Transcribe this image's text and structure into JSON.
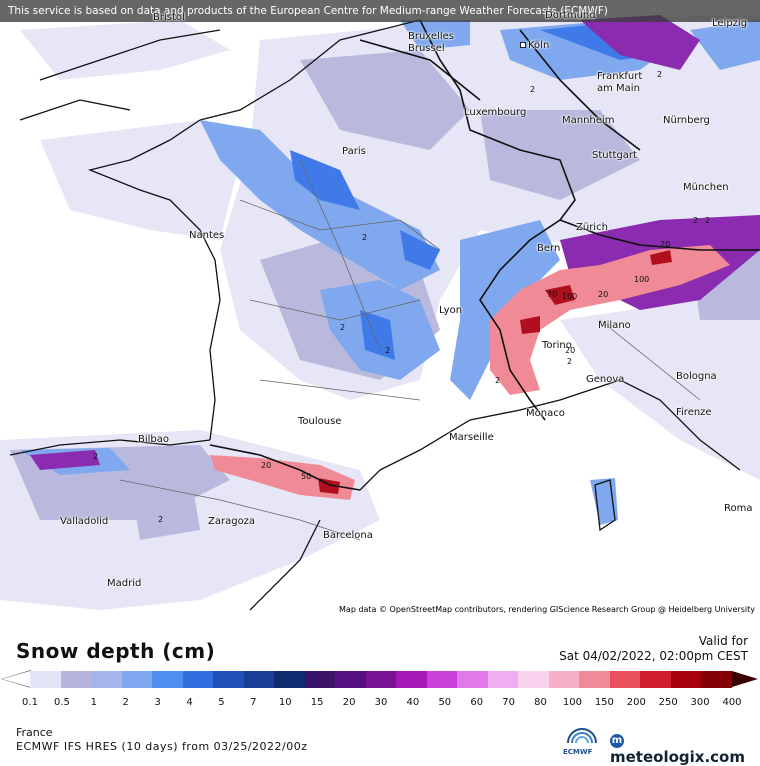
{
  "notice": "This service is based on data and products of the European Centre for Medium-range Weather Forecasts (ECMWF)",
  "attribution": "Map data © OpenStreetMap contributors, rendering GIScience Research Group @ Heidelberg University",
  "title": "Snow depth (cm)",
  "valid_label": "Valid for",
  "valid_time": "Sat 04/02/2022, 02:00pm CEST",
  "region": "France",
  "model": "ECMWF IFS HRES (10 days) from 03/25/2022/00z",
  "ecmwf_text": "ECMWF",
  "brand": "meteologix.com",
  "cities": {
    "bristol": "Bristol",
    "dortmund": "Dortmund",
    "leipzig": "Leipzig",
    "bruxelles": "Bruxelles\nBrussel",
    "koln": "Köln",
    "frankfurt": "Frankfurt\nam Main",
    "luxembourg": "Luxembourg",
    "mannheim": "Mannheim",
    "nurnberg": "Nürnberg",
    "paris": "Paris",
    "stuttgart": "Stuttgart",
    "munchen": "München",
    "nantes": "Nantes",
    "zurich": "Zürich",
    "bern": "Bern",
    "lyon": "Lyon",
    "milano": "Milano",
    "torino": "Torino",
    "genova": "Genova",
    "bologna": "Bologna",
    "firenze": "Firenze",
    "monaco": "Monaco",
    "toulouse": "Toulouse",
    "marseille": "Marseille",
    "bilbao": "Bilbao",
    "valladolid": "Valladolid",
    "zaragoza": "Zaragoza",
    "barcelona": "Barcelona",
    "roma": "Roma",
    "madrid": "Madrid"
  },
  "contour_labels": [
    "2",
    "2",
    "2",
    "2",
    "2",
    "2",
    "2",
    "2",
    "70",
    "100",
    "20",
    "100",
    "20",
    "2",
    "2",
    "20",
    "20",
    "50",
    "2"
  ],
  "legend": {
    "ticks": [
      "0.1",
      "0.5",
      "1",
      "2",
      "3",
      "4",
      "5",
      "7",
      "10",
      "15",
      "20",
      "30",
      "40",
      "50",
      "60",
      "70",
      "80",
      "100",
      "150",
      "200",
      "250",
      "300",
      "400"
    ],
    "colors": [
      "#e4e4f8",
      "#b6b6dc",
      "#a4b4ec",
      "#7fa8ee",
      "#4f8df0",
      "#2f6fe0",
      "#2150b8",
      "#1a3d96",
      "#102a70",
      "#3a1468",
      "#54107e",
      "#7a1296",
      "#a419b8",
      "#c842d8",
      "#e07ae8",
      "#efaef2",
      "#f9d2ee",
      "#f6b0c8",
      "#f08a96",
      "#e8505e",
      "#d0202e",
      "#a8000c",
      "#840006",
      "#5e0004"
    ]
  }
}
